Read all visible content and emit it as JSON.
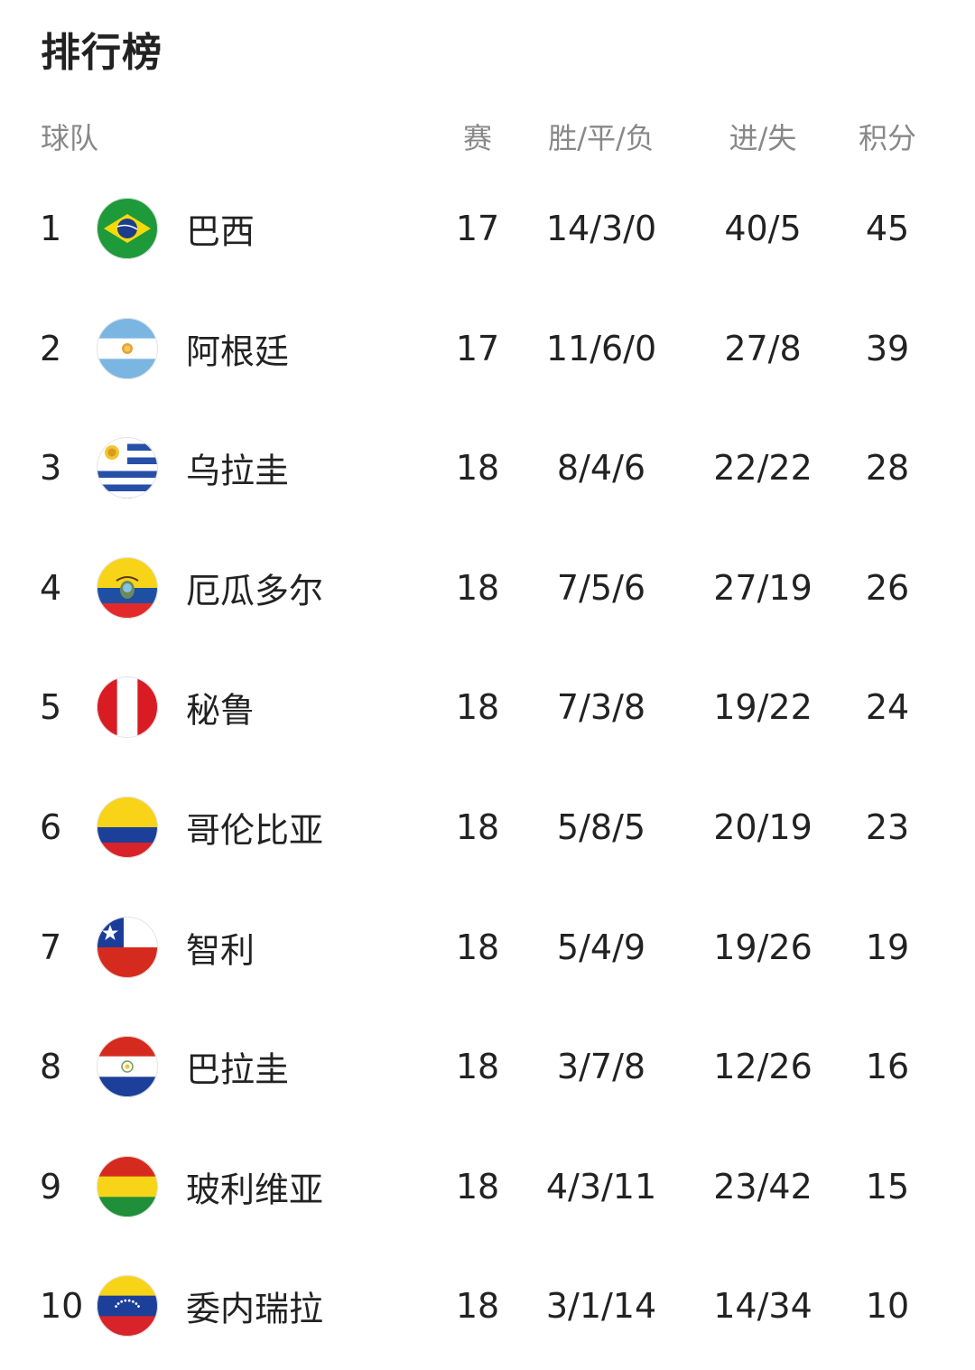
{
  "title": "排行榜",
  "columns": {
    "team": "球队",
    "played": "赛",
    "wdl": "胜/平/负",
    "goals": "进/失",
    "points": "积分"
  },
  "teams": [
    {
      "rank": "1",
      "name": "巴西",
      "played": "17",
      "wdl": "14/3/0",
      "goals": "40/5",
      "points": "45",
      "flag": "brazil"
    },
    {
      "rank": "2",
      "name": "阿根廷",
      "played": "17",
      "wdl": "11/6/0",
      "goals": "27/8",
      "points": "39",
      "flag": "argentina"
    },
    {
      "rank": "3",
      "name": "乌拉圭",
      "played": "18",
      "wdl": "8/4/6",
      "goals": "22/22",
      "points": "28",
      "flag": "uruguay"
    },
    {
      "rank": "4",
      "name": "厄瓜多尔",
      "played": "18",
      "wdl": "7/5/6",
      "goals": "27/19",
      "points": "26",
      "flag": "ecuador"
    },
    {
      "rank": "5",
      "name": "秘鲁",
      "played": "18",
      "wdl": "7/3/8",
      "goals": "19/22",
      "points": "24",
      "flag": "peru"
    },
    {
      "rank": "6",
      "name": "哥伦比亚",
      "played": "18",
      "wdl": "5/8/5",
      "goals": "20/19",
      "points": "23",
      "flag": "colombia"
    },
    {
      "rank": "7",
      "name": "智利",
      "played": "18",
      "wdl": "5/4/9",
      "goals": "19/26",
      "points": "19",
      "flag": "chile"
    },
    {
      "rank": "8",
      "name": "巴拉圭",
      "played": "18",
      "wdl": "3/7/8",
      "goals": "12/26",
      "points": "16",
      "flag": "paraguay"
    },
    {
      "rank": "9",
      "name": "玻利维亚",
      "played": "18",
      "wdl": "4/3/11",
      "goals": "23/42",
      "points": "15",
      "flag": "bolivia"
    },
    {
      "rank": "10",
      "name": "委内瑞拉",
      "played": "18",
      "wdl": "3/1/14",
      "goals": "14/34",
      "points": "10",
      "flag": "venezuela"
    }
  ]
}
